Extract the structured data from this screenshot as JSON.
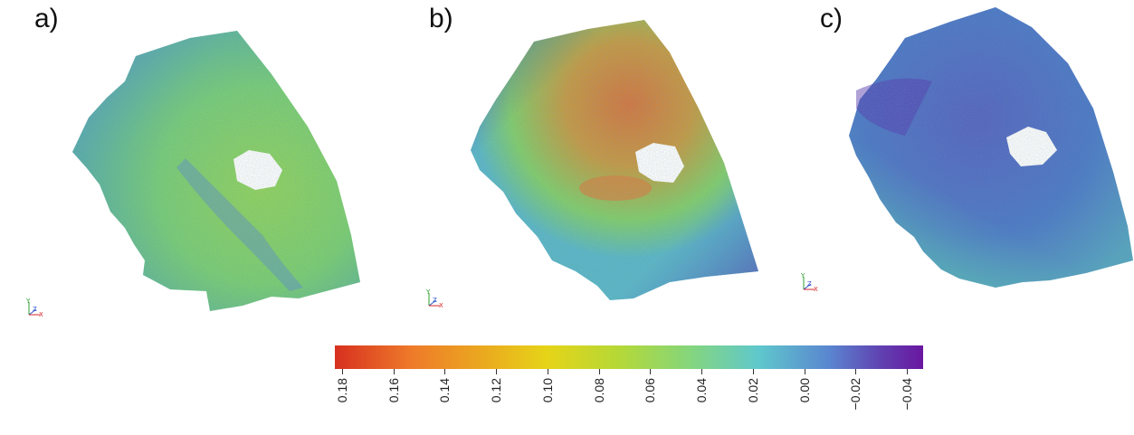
{
  "panels": [
    {
      "label": "a)"
    },
    {
      "label": "b)"
    },
    {
      "label": "c)"
    }
  ],
  "colorbar": {
    "ticks": [
      "0.18",
      "0.16",
      "0.14",
      "0.12",
      "0.10",
      "0.08",
      "0.06",
      "0.04",
      "0.02",
      "0.00",
      "−0.02",
      "−0.04"
    ],
    "colors": [
      "#d7301f",
      "#f08a2a",
      "#e8c81a",
      "#b4d832",
      "#7fd66a",
      "#5fc9c8",
      "#4f8ad0",
      "#5a3fb0",
      "#6a1aa0"
    ]
  },
  "axes_triad": {
    "y": "Y",
    "z": "Z",
    "x": "X"
  }
}
